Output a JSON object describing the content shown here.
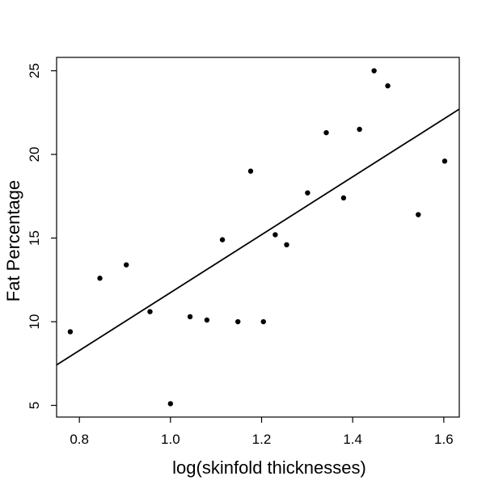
{
  "chart_data": {
    "type": "scatter",
    "title": "",
    "xlabel": "log(skinfold thicknesses)",
    "ylabel": "Fat Percentage",
    "xlim": [
      0.75,
      1.634
    ],
    "ylim": [
      4.3,
      25.8
    ],
    "xticks": [
      0.8,
      1.0,
      1.2,
      1.4,
      1.6
    ],
    "xtick_labels": [
      "0.8",
      "1.0",
      "1.2",
      "1.4",
      "1.6"
    ],
    "yticks": [
      5,
      10,
      15,
      20,
      25
    ],
    "ytick_labels": [
      "5",
      "10",
      "15",
      "20",
      "25"
    ],
    "grid": false,
    "series": [
      {
        "points": [
          {
            "x": 0.78,
            "y": 9.4
          },
          {
            "x": 0.845,
            "y": 12.6
          },
          {
            "x": 0.903,
            "y": 13.4
          },
          {
            "x": 0.955,
            "y": 10.6
          },
          {
            "x": 1.0,
            "y": 5.1
          },
          {
            "x": 1.043,
            "y": 10.3
          },
          {
            "x": 1.08,
            "y": 10.1
          },
          {
            "x": 1.114,
            "y": 14.9
          },
          {
            "x": 1.148,
            "y": 10.0
          },
          {
            "x": 1.176,
            "y": 19.0
          },
          {
            "x": 1.204,
            "y": 10.0
          },
          {
            "x": 1.23,
            "y": 15.2
          },
          {
            "x": 1.255,
            "y": 14.6
          },
          {
            "x": 1.301,
            "y": 17.7
          },
          {
            "x": 1.342,
            "y": 21.3
          },
          {
            "x": 1.38,
            "y": 17.4
          },
          {
            "x": 1.415,
            "y": 21.5
          },
          {
            "x": 1.447,
            "y": 25.0
          },
          {
            "x": 1.477,
            "y": 24.1
          },
          {
            "x": 1.544,
            "y": 16.4
          },
          {
            "x": 1.602,
            "y": 19.6
          }
        ]
      }
    ],
    "fit_line": {
      "intercept": -5.56,
      "slope": 17.3
    }
  }
}
